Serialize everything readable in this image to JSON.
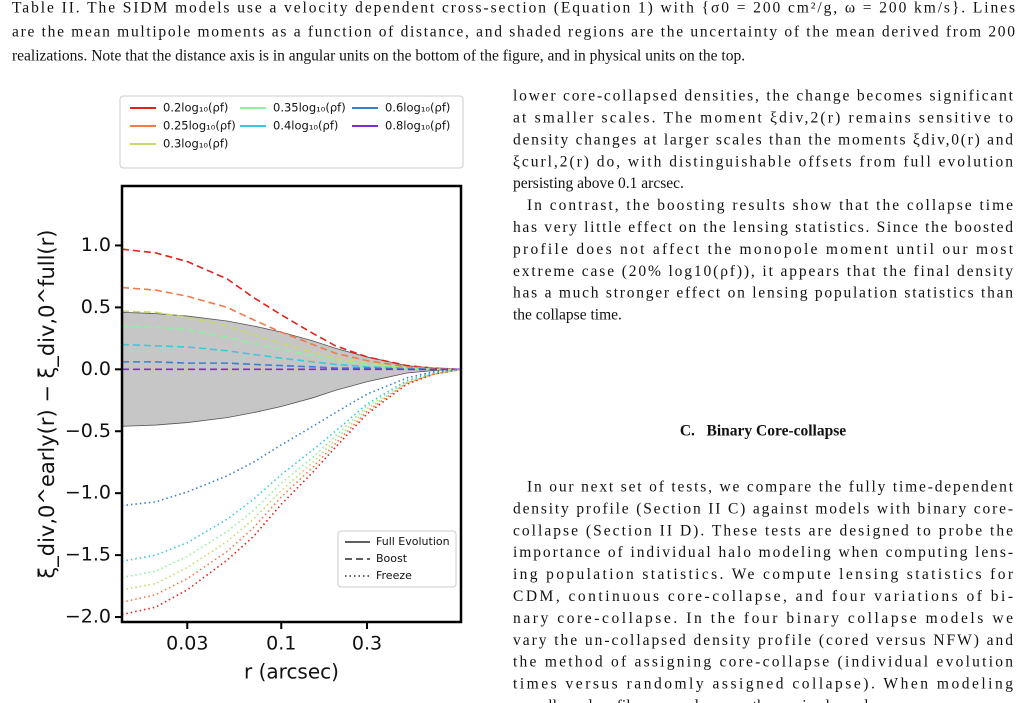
{
  "caption": {
    "lines": [
      "Table II. The SIDM models use a velocity dependent cross-section (Equation 1) with {σ0 = 200 cm²/g, ω = 200 km/s}. Lines",
      "are the mean multipole moments as a function of distance, and shaded regions are the uncertainty of the mean derived from 200",
      "realizations. Note that the distance axis is in angular units on the bottom of the figure, and in physical units on the top."
    ]
  },
  "column": {
    "para1": {
      "lines": [
        "lower core-collapsed densities, the change becomes significant",
        "at smaller scales. The moment ξdiv,2(r) remains sensitive to",
        "density changes at larger scales than the moments ξdiv,0(r) and",
        "ξcurl,2(r) do, with distinguishable offsets from full evolution",
        "persisting above 0.1 arcsec."
      ]
    },
    "para2": {
      "lines": [
        "In contrast, the boosting results show that the collapse time",
        "has very little effect on the lensing statistics. Since the boosted",
        "profile does not affect the monopole moment until our most",
        "extreme case (20% log10(ρf)), it appears that the final density",
        "has a much stronger effect on lensing population statistics than",
        "the collapse time."
      ]
    },
    "heading": "C.   Binary Core-collapse",
    "para3": {
      "lines": [
        "In our next set of tests, we compare the fully time-dependent",
        "density profile (Section II C) against models with binary core-",
        "collapse (Section II D). These tests are designed to probe the",
        "importance of individual halo modeling when computing lens-",
        "ing population statistics. We compute lensing statistics for",
        "CDM, continuous core-collapse, and four variations of bi-",
        "nary core-collapse. In the four binary collapse models we",
        "vary the un-collapsed density profile (cored versus NFW) and",
        "the method of assigning core-collapse (individual evolution",
        "times versus randomly assigned collapse). When modeling",
        "un-collapsed profiles as cored, we use the maximal cored"
      ]
    }
  },
  "chart_data": {
    "type": "line",
    "xlabel": "r (arcsec)",
    "ylabel": "ξ_div,0^early(r) − ξ_div,0^full(r)",
    "xscale": "log",
    "x": [
      0.013,
      0.02,
      0.03,
      0.05,
      0.07,
      0.1,
      0.15,
      0.2,
      0.3,
      0.5,
      0.7,
      1.0
    ],
    "xlim": [
      0.013,
      1.0
    ],
    "xticks": [
      0.03,
      0.1,
      0.3
    ],
    "ylim": [
      -2.04,
      1.48
    ],
    "yticks": [
      {
        "value": -2,
        "label": "−2.0"
      },
      {
        "value": -1.5,
        "label": "−1.5"
      },
      {
        "value": -1,
        "label": "−1.0"
      },
      {
        "value": -0.5,
        "label": "−0.5"
      },
      {
        "value": 0,
        "label": "0.0"
      },
      {
        "value": 0.5,
        "label": "0.5"
      },
      {
        "value": 1,
        "label": "1.0"
      }
    ],
    "band": {
      "color": "#c6c6c6",
      "upper": [
        0.46,
        0.45,
        0.43,
        0.39,
        0.35,
        0.3,
        0.23,
        0.17,
        0.1,
        0.03,
        0.01,
        0
      ],
      "lower": [
        -0.46,
        -0.45,
        -0.43,
        -0.39,
        -0.35,
        -0.3,
        -0.23,
        -0.17,
        -0.1,
        -0.03,
        -0.01,
        0
      ]
    },
    "series": [
      {
        "color": "#e0221c",
        "style": "dashed",
        "values": [
          0.97,
          0.94,
          0.87,
          0.73,
          0.58,
          0.44,
          0.29,
          0.19,
          0.1,
          0.03,
          0.01,
          0
        ]
      },
      {
        "color": "#f07a48",
        "style": "dashed",
        "values": [
          0.66,
          0.64,
          0.59,
          0.5,
          0.4,
          0.3,
          0.2,
          0.13,
          0.07,
          0.02,
          0.01,
          0
        ]
      },
      {
        "color": "#c9d86c",
        "style": "dashed",
        "values": [
          0.47,
          0.46,
          0.42,
          0.35,
          0.28,
          0.21,
          0.14,
          0.09,
          0.05,
          0.01,
          0,
          0
        ]
      },
      {
        "color": "#8ef0a0",
        "style": "dashed",
        "values": [
          0.35,
          0.34,
          0.32,
          0.26,
          0.21,
          0.16,
          0.11,
          0.07,
          0.04,
          0.01,
          0,
          0
        ]
      },
      {
        "color": "#3cc8d8",
        "style": "dashed",
        "values": [
          0.2,
          0.19,
          0.18,
          0.15,
          0.12,
          0.09,
          0.06,
          0.04,
          0.02,
          0.01,
          0,
          0
        ]
      },
      {
        "color": "#3a7fd0",
        "style": "dashed",
        "values": [
          0.06,
          0.06,
          0.05,
          0.05,
          0.04,
          0.03,
          0.02,
          0.01,
          0.01,
          0,
          0,
          0
        ]
      },
      {
        "color": "#7b2fd0",
        "style": "dashed",
        "values": [
          0,
          0,
          0,
          0,
          0,
          0,
          0,
          0,
          0,
          0,
          0,
          0
        ]
      },
      {
        "color": "#e0221c",
        "style": "dotted",
        "values": [
          -1.98,
          -1.92,
          -1.78,
          -1.54,
          -1.35,
          -1.09,
          -0.83,
          -0.63,
          -0.36,
          -0.12,
          -0.04,
          0
        ]
      },
      {
        "color": "#f07a48",
        "style": "dotted",
        "values": [
          -1.88,
          -1.82,
          -1.69,
          -1.47,
          -1.28,
          -1.03,
          -0.79,
          -0.6,
          -0.34,
          -0.11,
          -0.04,
          0
        ]
      },
      {
        "color": "#c9d86c",
        "style": "dotted",
        "values": [
          -1.78,
          -1.73,
          -1.6,
          -1.39,
          -1.21,
          -0.98,
          -0.75,
          -0.57,
          -0.32,
          -0.11,
          -0.04,
          0
        ]
      },
      {
        "color": "#8ef0a0",
        "style": "dotted",
        "values": [
          -1.68,
          -1.63,
          -1.51,
          -1.31,
          -1.14,
          -0.92,
          -0.71,
          -0.54,
          -0.3,
          -0.1,
          -0.03,
          0
        ]
      },
      {
        "color": "#3cc8d8",
        "style": "dotted",
        "values": [
          -1.55,
          -1.5,
          -1.4,
          -1.21,
          -1.05,
          -0.85,
          -0.65,
          -0.5,
          -0.28,
          -0.09,
          -0.03,
          0
        ]
      },
      {
        "color": "#3a7fd0",
        "style": "dotted",
        "values": [
          -1.1,
          -1.07,
          -0.99,
          -0.86,
          -0.75,
          -0.61,
          -0.46,
          -0.35,
          -0.2,
          -0.07,
          -0.02,
          0
        ]
      }
    ],
    "legend_colors": [
      {
        "label": "0.2log₁₀(ρf)",
        "color": "#e0221c"
      },
      {
        "label": "0.25log₁₀(ρf)",
        "color": "#f07a48"
      },
      {
        "label": "0.3log₁₀(ρf)",
        "color": "#c9d86c"
      },
      {
        "label": "0.35log₁₀(ρf)",
        "color": "#8ef0a0"
      },
      {
        "label": "0.4log₁₀(ρf)",
        "color": "#3cc8d8"
      },
      {
        "label": "0.6log₁₀(ρf)",
        "color": "#3a7fd0"
      },
      {
        "label": "0.8log₁₀(ρf)",
        "color": "#7b2fd0"
      }
    ],
    "legend_styles": [
      {
        "label": "Full Evolution",
        "style": "solid"
      },
      {
        "label": "Boost",
        "style": "dashed"
      },
      {
        "label": "Freeze",
        "style": "dotted"
      }
    ]
  }
}
